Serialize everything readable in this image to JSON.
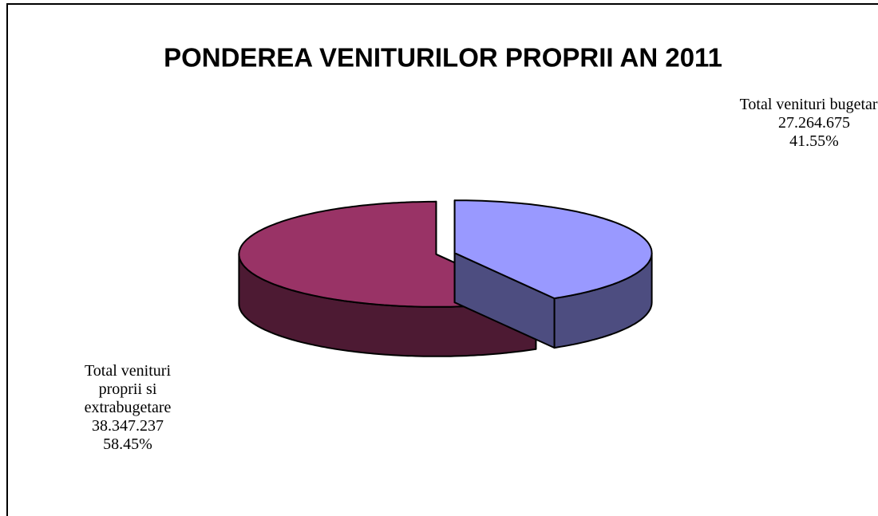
{
  "chart_data": {
    "type": "pie",
    "title": "PONDEREA VENITURILOR PROPRII AN 2011",
    "categories": [
      "Total venituri bugetare.",
      "Total venituri proprii si extrabugetare"
    ],
    "values": [
      27264675,
      38347237
    ],
    "value_labels": [
      "27.264.675",
      "38.347.237"
    ],
    "percents": [
      41.55,
      58.45
    ],
    "percent_labels": [
      "41.55%",
      "58.45%"
    ],
    "colors": [
      "#9999ff",
      "#993366"
    ],
    "side_colors": [
      "#4d4d80",
      "#4d1a33"
    ]
  }
}
